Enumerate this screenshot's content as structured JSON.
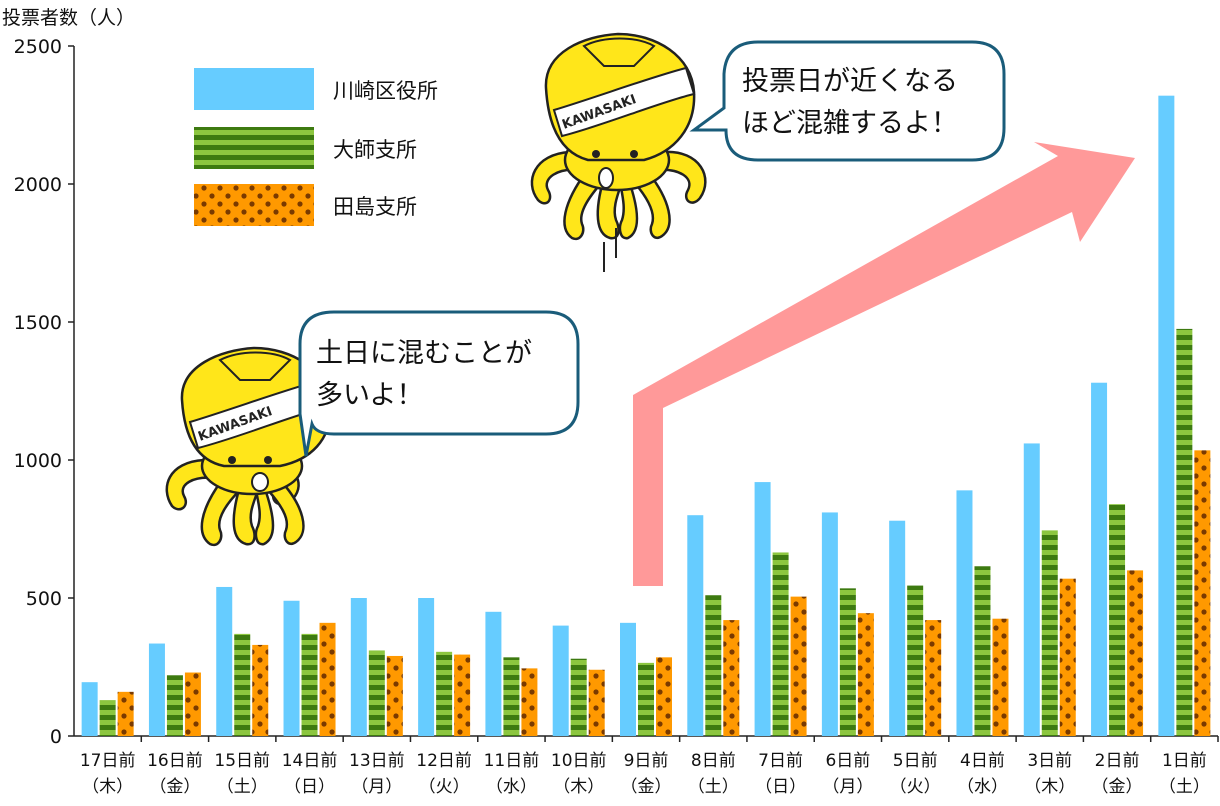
{
  "chart_data": {
    "type": "bar",
    "ylabel": "投票者数（人）",
    "ylim": [
      0,
      2500
    ],
    "yticks": [
      0,
      500,
      1000,
      1500,
      2000,
      2500
    ],
    "grid": false,
    "legend_position": "top-left",
    "categories": [
      {
        "line1": "17日前",
        "line2": "（木）"
      },
      {
        "line1": "16日前",
        "line2": "（金）"
      },
      {
        "line1": "15日前",
        "line2": "（土）"
      },
      {
        "line1": "14日前",
        "line2": "（日）"
      },
      {
        "line1": "13日前",
        "line2": "（月）"
      },
      {
        "line1": "12日前",
        "line2": "（火）"
      },
      {
        "line1": "11日前",
        "line2": "（水）"
      },
      {
        "line1": "10日前",
        "line2": "（木）"
      },
      {
        "line1": "9日前",
        "line2": "（金）"
      },
      {
        "line1": "8日前",
        "line2": "（土）"
      },
      {
        "line1": "7日前",
        "line2": "（日）"
      },
      {
        "line1": "6日前",
        "line2": "（月）"
      },
      {
        "line1": "5日前",
        "line2": "（火）"
      },
      {
        "line1": "4日前",
        "line2": "（水）"
      },
      {
        "line1": "3日前",
        "line2": "（木）"
      },
      {
        "line1": "2日前",
        "line2": "（金）"
      },
      {
        "line1": "1日前",
        "line2": "（土）"
      }
    ],
    "series": [
      {
        "name": "川崎区役所",
        "color": "#66ccff",
        "pattern": "solid",
        "values": [
          195,
          335,
          540,
          490,
          500,
          500,
          450,
          400,
          410,
          800,
          920,
          810,
          780,
          890,
          1060,
          1280,
          2320
        ]
      },
      {
        "name": "大師支所",
        "color": "#5a9e1e",
        "pattern": "stripes",
        "values": [
          130,
          220,
          370,
          370,
          310,
          305,
          285,
          280,
          265,
          510,
          665,
          535,
          545,
          615,
          745,
          840,
          1475
        ]
      },
      {
        "name": "田島支所",
        "color": "#ff9900",
        "pattern": "dots",
        "values": [
          160,
          230,
          330,
          410,
          290,
          295,
          245,
          240,
          285,
          420,
          505,
          445,
          420,
          425,
          570,
          600,
          1035
        ]
      }
    ],
    "annotations": {
      "bubble_top": {
        "line1": "投票日が近くなる",
        "line2": "ほど混雑するよ！"
      },
      "bubble_left": {
        "line1": "土日に混むことが",
        "line2": "多いよ！"
      },
      "mascot_text": "KAWASAKI"
    }
  }
}
